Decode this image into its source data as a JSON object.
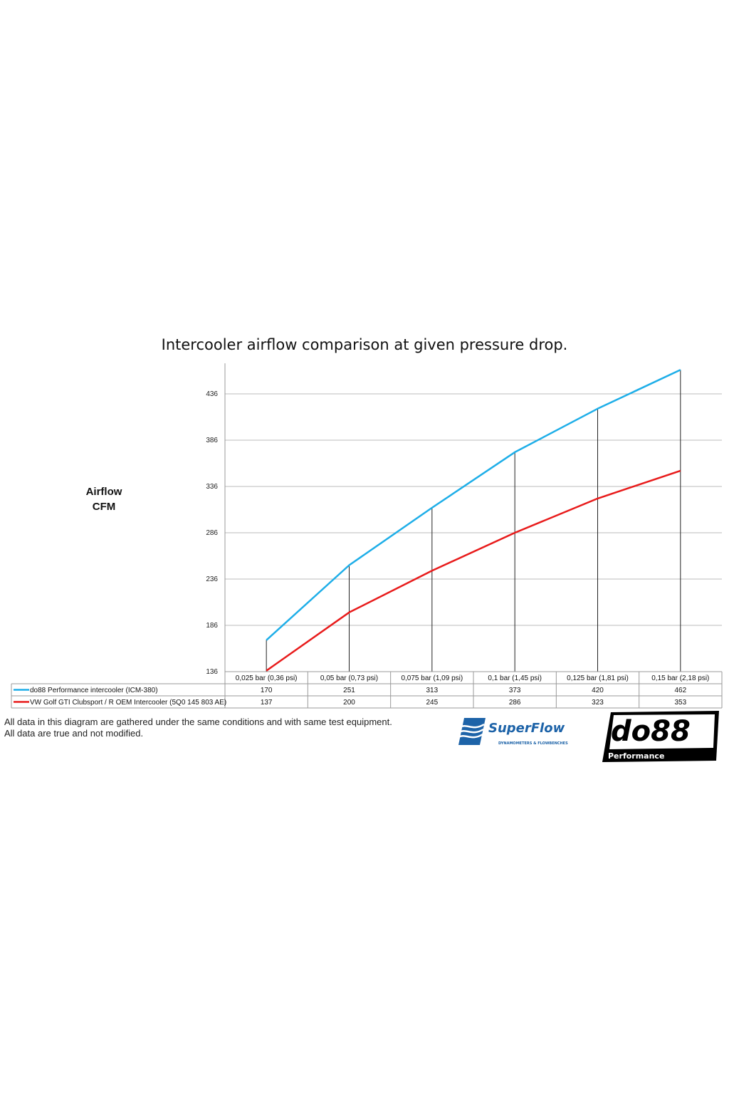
{
  "chart_data": {
    "type": "line",
    "title": "Intercooler airflow comparison at given pressure drop.",
    "ylabel": "Airflow CFM",
    "ylabel_lines": [
      "Airflow",
      "CFM"
    ],
    "xlabel": "",
    "categories": [
      "0,025 bar (0,36 psi)",
      "0,05 bar (0,73 psi)",
      "0,075 bar (1,09 psi)",
      "0,1 bar (1,45 psi)",
      "0,125 bar (1,81 psi)",
      "0,15 bar (2,18 psi)"
    ],
    "yticks": [
      136,
      186,
      236,
      286,
      336,
      386,
      436
    ],
    "ylim": [
      136,
      469
    ],
    "grid": true,
    "legend": "data table below chart",
    "series": [
      {
        "name": "do88 Performance intercooler (ICM-380)",
        "color": "#1eaee8",
        "values": [
          170,
          251,
          313,
          373,
          420,
          462
        ]
      },
      {
        "name": "VW Golf GTI Clubsport / R OEM Intercooler (5Q0 145 803 AE)",
        "color": "#e81b1b",
        "values": [
          137,
          200,
          245,
          286,
          323,
          353
        ]
      }
    ]
  },
  "notes": [
    "All data in this diagram are gathered under the same conditions and with same test equipment.",
    "All data are true and not modified."
  ],
  "logos": {
    "superflow": {
      "name": "SuperFlow",
      "tagline": "DYNAMOMETERS & FLOWBENCHES",
      "color": "#1d63a8"
    },
    "do88": {
      "name": "do88",
      "tagline": "Performance"
    }
  }
}
